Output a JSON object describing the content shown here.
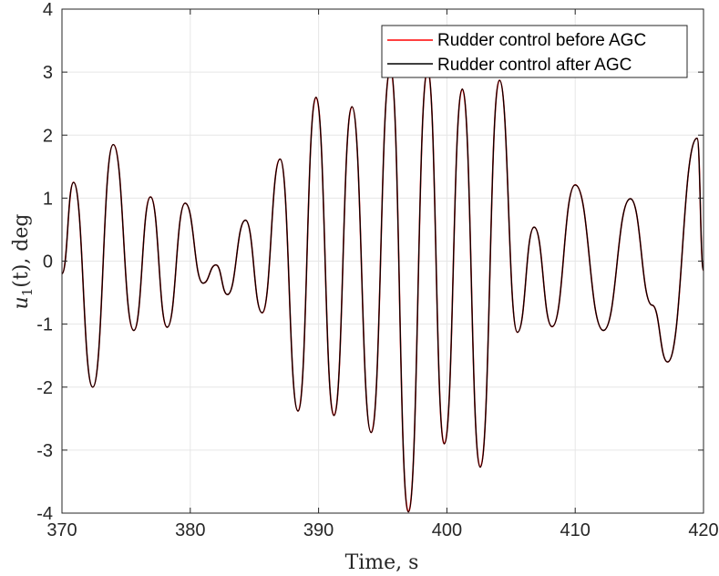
{
  "chart_data": {
    "type": "line",
    "title": "",
    "xlabel": "Time, s",
    "ylabel": "u_1(t), deg",
    "ylabel_parts": {
      "var": "u",
      "sub": "1",
      "rest": "(t), deg"
    },
    "xlim": [
      370,
      420
    ],
    "ylim": [
      -4,
      4
    ],
    "xticks": [
      "370",
      "380",
      "390",
      "400",
      "410",
      "420"
    ],
    "yticks": [
      "4",
      "3",
      "2",
      "1",
      "0",
      "-1",
      "-2",
      "-3",
      "-4"
    ],
    "grid": true,
    "legend_position": "top-right",
    "series": [
      {
        "name": "Rudder control before AGC",
        "color": "#ff0000",
        "x": [
          370.0,
          370.9,
          372.4,
          374.0,
          375.6,
          376.9,
          378.2,
          379.6,
          381.0,
          382.0,
          382.9,
          384.3,
          385.6,
          387.0,
          388.4,
          389.8,
          391.2,
          392.6,
          394.1,
          395.6,
          397.0,
          398.5,
          399.8,
          401.2,
          402.6,
          404.1,
          405.5,
          406.8,
          408.2,
          410.0,
          412.2,
          414.3,
          416.0,
          417.2,
          419.5,
          420.0
        ],
        "y": [
          -0.2,
          1.25,
          -2.0,
          1.85,
          -1.1,
          1.02,
          -1.05,
          0.92,
          -0.35,
          -0.06,
          -0.53,
          0.65,
          -0.82,
          1.62,
          -2.38,
          2.6,
          -2.45,
          2.45,
          -2.72,
          3.05,
          -3.98,
          3.03,
          -2.9,
          2.73,
          -3.27,
          2.87,
          -1.13,
          0.54,
          -1.04,
          1.21,
          -1.1,
          0.99,
          -0.7,
          -1.6,
          1.95,
          -0.15
        ]
      },
      {
        "name": "Rudder control after AGC",
        "color": "#000000",
        "x": [
          370.0,
          370.9,
          372.4,
          374.0,
          375.6,
          376.9,
          378.2,
          379.6,
          381.0,
          382.0,
          382.9,
          384.3,
          385.6,
          387.0,
          388.4,
          389.8,
          391.2,
          392.6,
          394.1,
          395.6,
          397.0,
          398.5,
          399.8,
          401.2,
          402.6,
          404.1,
          405.5,
          406.8,
          408.2,
          410.0,
          412.2,
          414.3,
          416.0,
          417.2,
          419.5,
          420.0
        ],
        "y": [
          -0.2,
          1.25,
          -2.0,
          1.85,
          -1.1,
          1.02,
          -1.05,
          0.92,
          -0.35,
          -0.06,
          -0.53,
          0.65,
          -0.82,
          1.62,
          -2.38,
          2.6,
          -2.45,
          2.45,
          -2.72,
          3.05,
          -3.98,
          3.03,
          -2.9,
          2.73,
          -3.27,
          2.87,
          -1.13,
          0.54,
          -1.04,
          1.21,
          -1.1,
          0.99,
          -0.7,
          -1.6,
          1.95,
          -0.15
        ]
      }
    ]
  }
}
